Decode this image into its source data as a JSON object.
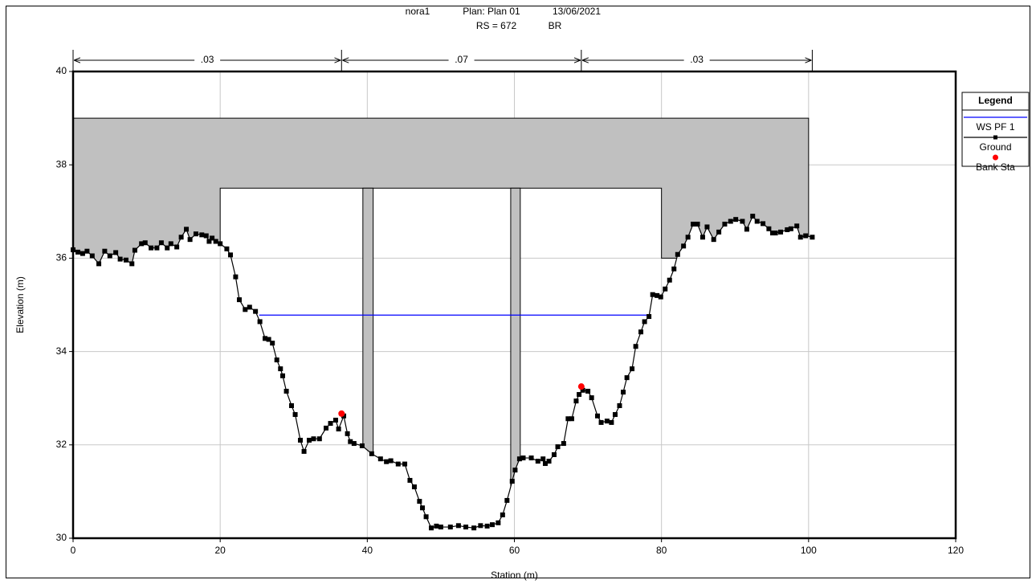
{
  "chart_data": {
    "type": "cross_section",
    "title_parts": [
      "nora1",
      "Plan: Plan 01",
      "13/06/2021"
    ],
    "subtitle_parts": [
      "RS = 672",
      "BR"
    ],
    "x_label": "Station (m)",
    "y_label": "Elevation (m)",
    "xlim": [
      0,
      120
    ],
    "xticks": [
      0,
      20,
      40,
      60,
      80,
      100,
      120
    ],
    "ylim": [
      30,
      40
    ],
    "yticks": [
      30,
      32,
      34,
      36,
      38,
      40
    ],
    "grid": true,
    "legend_title": "Legend",
    "legend_position": "right",
    "mannings_n": {
      "stations": [
        0,
        36.5,
        69.1,
        100.5
      ],
      "values": [
        {
          "value": 0.03,
          "label": ".03"
        },
        {
          "value": 0.07,
          "label": ".07"
        },
        {
          "value": 0.03,
          "label": ".03"
        }
      ]
    },
    "deck": {
      "color": "#c0c0c0",
      "high_chord": {
        "x": [
          0,
          100
        ],
        "y": [
          39,
          39
        ]
      },
      "low_chord": {
        "x": [
          20,
          80,
          80,
          100
        ],
        "y": [
          37.5,
          37.5,
          36,
          36
        ]
      }
    },
    "piers": [
      {
        "x": [
          39.4,
          40.8
        ],
        "top": 37.5
      },
      {
        "x": [
          59.5,
          60.8
        ],
        "top": 37.5
      }
    ],
    "series": [
      {
        "name": "WS PF 1",
        "color": "#0000ff",
        "mark": "line",
        "x": [
          25.3,
          78.1
        ],
        "y": [
          34.78,
          34.78
        ]
      },
      {
        "name": "Ground",
        "color": "#000000",
        "mark": "line-square",
        "x": [
          0,
          0.65,
          1.3,
          1.9,
          2.6,
          3.5,
          4.3,
          5.0,
          5.8,
          6.4,
          7.2,
          8.0,
          8.4,
          9.3,
          9.8,
          10.6,
          11.4,
          12.0,
          12.8,
          13.3,
          14.1,
          14.7,
          15.4,
          15.9,
          16.7,
          17.5,
          18.1,
          18.5,
          18.9,
          19.4,
          20.0,
          20.9,
          21.4,
          22.1,
          22.6,
          23.4,
          24.0,
          24.8,
          25.4,
          26.1,
          26.6,
          27.1,
          27.7,
          28.2,
          28.5,
          29.0,
          29.7,
          30.2,
          30.9,
          31.4,
          32.1,
          32.7,
          33.5,
          34.4,
          35.0,
          35.7,
          36.1,
          36.8,
          37.3,
          37.7,
          38.2,
          39.3,
          40.6,
          41.8,
          42.6,
          43.2,
          44.2,
          45.1,
          45.8,
          46.4,
          47.1,
          47.5,
          48.0,
          48.7,
          49.4,
          50.0,
          51.3,
          52.4,
          53.4,
          54.5,
          55.4,
          56.3,
          57.0,
          57.8,
          58.4,
          59.0,
          59.7,
          60.1,
          60.7,
          61.2,
          62.3,
          63.2,
          63.9,
          64.2,
          64.7,
          65.4,
          65.9,
          66.7,
          67.3,
          67.8,
          68.4,
          68.8,
          69.3,
          70.0,
          70.5,
          71.3,
          71.8,
          72.6,
          73.2,
          73.7,
          74.3,
          74.8,
          75.3,
          76.0,
          76.5,
          77.2,
          77.7,
          78.3,
          78.8,
          79.4,
          79.9,
          80.5,
          81.1,
          81.7,
          82.2,
          83.0,
          83.6,
          84.3,
          84.9,
          85.6,
          86.2,
          87.1,
          87.8,
          88.6,
          89.4,
          90.1,
          91.0,
          91.6,
          92.4,
          93.0,
          93.8,
          94.6,
          95.1,
          95.5,
          96.2,
          97.1,
          97.6,
          98.4,
          98.9,
          99.6,
          100.5
        ],
        "y": [
          36.18,
          36.13,
          36.1,
          36.15,
          36.05,
          35.88,
          36.15,
          36.05,
          36.12,
          35.98,
          35.96,
          35.88,
          36.17,
          36.31,
          36.33,
          36.22,
          36.22,
          36.33,
          36.22,
          36.31,
          36.24,
          36.45,
          36.62,
          36.4,
          36.52,
          36.5,
          36.48,
          36.36,
          36.43,
          36.36,
          36.31,
          36.2,
          36.07,
          35.6,
          35.11,
          34.9,
          34.95,
          34.86,
          34.64,
          34.28,
          34.26,
          34.18,
          33.82,
          33.63,
          33.48,
          33.15,
          32.84,
          32.65,
          32.1,
          31.86,
          32.1,
          32.13,
          32.13,
          32.36,
          32.46,
          32.53,
          32.34,
          32.62,
          32.24,
          32.07,
          32.03,
          31.98,
          31.81,
          31.7,
          31.64,
          31.66,
          31.59,
          31.59,
          31.24,
          31.1,
          30.79,
          30.65,
          30.46,
          30.22,
          30.26,
          30.24,
          30.24,
          30.27,
          30.24,
          30.22,
          30.27,
          30.26,
          30.29,
          30.33,
          30.5,
          30.81,
          31.22,
          31.46,
          31.7,
          31.72,
          31.72,
          31.65,
          31.7,
          31.6,
          31.65,
          31.79,
          31.96,
          32.03,
          32.56,
          32.56,
          32.94,
          33.08,
          33.17,
          33.15,
          33.01,
          32.62,
          32.48,
          32.51,
          32.48,
          32.65,
          32.84,
          33.13,
          33.44,
          33.63,
          34.11,
          34.42,
          34.64,
          34.75,
          35.22,
          35.2,
          35.17,
          35.34,
          35.53,
          35.77,
          36.08,
          36.26,
          36.45,
          36.73,
          36.73,
          36.45,
          36.67,
          36.4,
          36.56,
          36.73,
          36.79,
          36.83,
          36.79,
          36.62,
          36.9,
          36.79,
          36.74,
          36.63,
          36.54,
          36.54,
          36.56,
          36.61,
          36.63,
          36.69,
          36.45,
          36.48,
          36.45
        ]
      },
      {
        "name": "Bank Sta",
        "color": "#ff0000",
        "mark": "dot",
        "x": [
          36.5,
          69.1
        ],
        "y": [
          32.67,
          33.25
        ]
      }
    ]
  }
}
